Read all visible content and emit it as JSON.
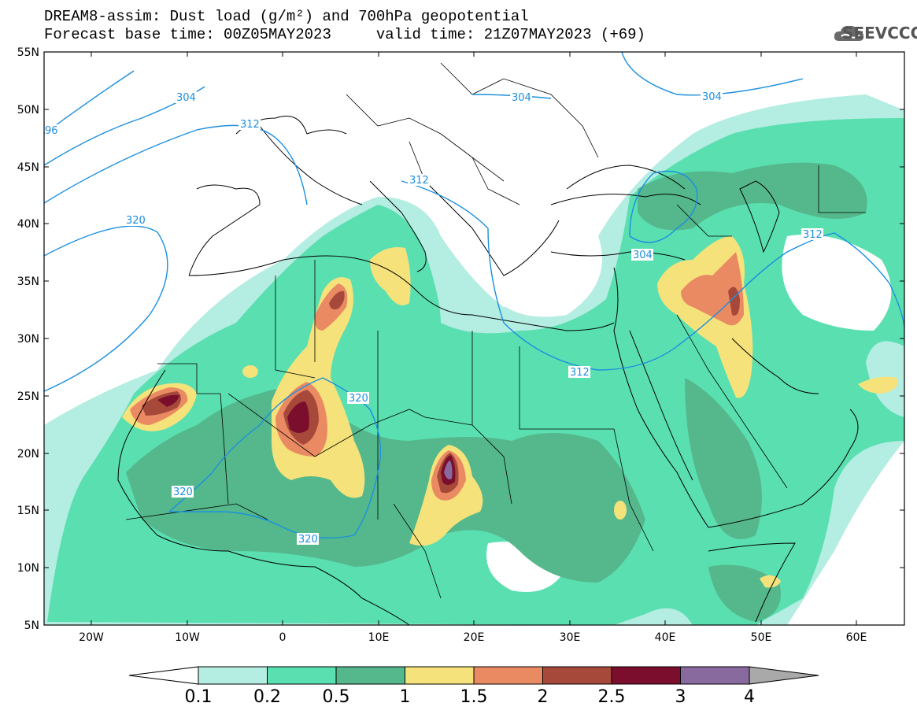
{
  "header": {
    "line1": "DREAM8-assim: Dust load (g/m²) and 700hPa geopotential",
    "line2": "Forecast base time: 00Z05MAY2023     valid time: 21Z07MAY2023 (+69)"
  },
  "logo": {
    "text": "SEEVCCC",
    "icon": "cloud-logo-icon"
  },
  "map": {
    "lat_labels": [
      "55N",
      "50N",
      "45N",
      "40N",
      "35N",
      "30N",
      "25N",
      "20N",
      "15N",
      "10N",
      "5N"
    ],
    "lon_labels": [
      "20W",
      "10W",
      "0",
      "10E",
      "20E",
      "30E",
      "40E",
      "50E",
      "60E"
    ],
    "contour_labels": [
      "304",
      "304",
      "304",
      "312",
      "312",
      "312",
      "312",
      "320",
      "320",
      "320",
      "320",
      "304",
      "96"
    ]
  },
  "colorbar": {
    "labels": [
      "0.1",
      "0.2",
      "0.5",
      "1",
      "1.5",
      "2",
      "2.5",
      "3",
      "4"
    ],
    "colors": [
      "#b4ede1",
      "#5adfb1",
      "#55b88c",
      "#f6e27a",
      "#ea8a63",
      "#a6493a",
      "#7b0e2c",
      "#886a9e",
      "#a9a9a9"
    ]
  }
}
